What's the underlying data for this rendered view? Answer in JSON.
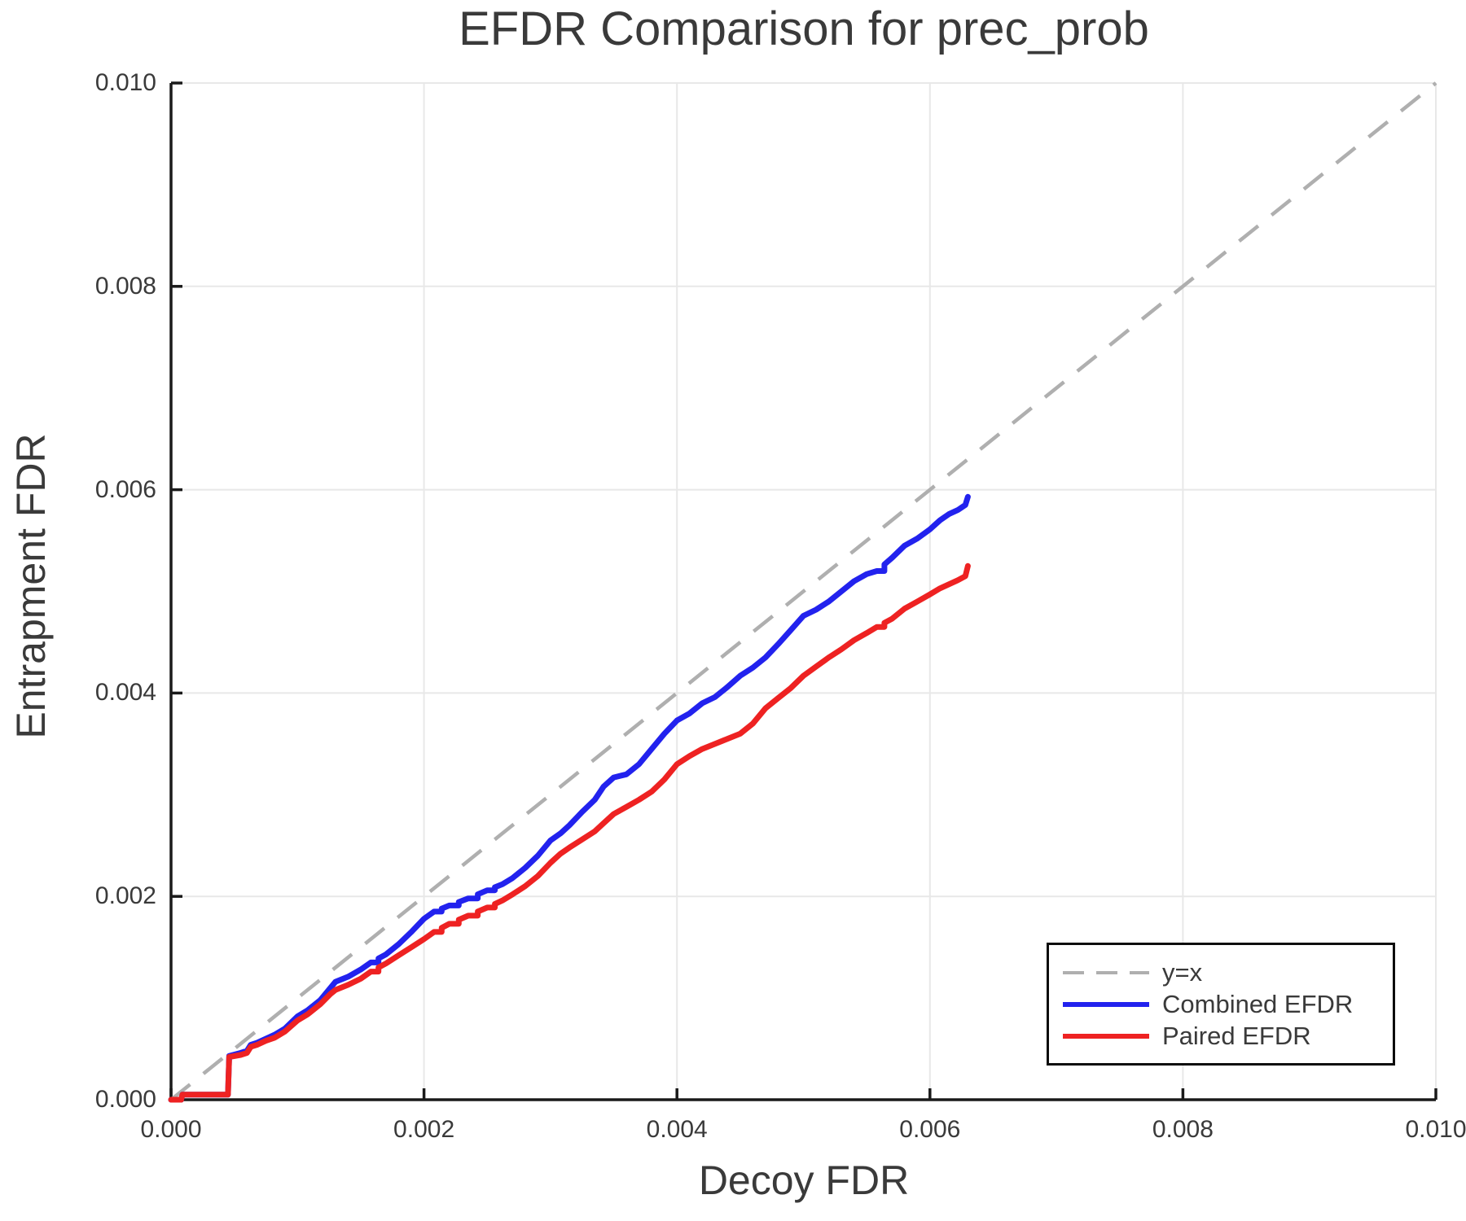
{
  "chart_data": {
    "type": "line",
    "title": "EFDR Comparison for prec_prob",
    "xlabel": "Decoy FDR",
    "ylabel": "Entrapment FDR",
    "xlim": [
      0.0,
      0.01
    ],
    "ylim": [
      0.0,
      0.01
    ],
    "x_ticks": [
      "0.000",
      "0.002",
      "0.004",
      "0.006",
      "0.008",
      "0.010"
    ],
    "y_ticks": [
      "0.000",
      "0.002",
      "0.004",
      "0.006",
      "0.008",
      "0.010"
    ],
    "grid": true,
    "legend_position": "lower right",
    "colors": {
      "identity": "#afafaf",
      "combined": "#2222ee",
      "paired": "#ee2222",
      "gridline": "#e8e8e8",
      "axis": "#1a1a1a",
      "text": "#3a3a3a"
    },
    "legend": {
      "items": [
        {
          "label": "y=x",
          "color": "#afafaf",
          "dashed": true
        },
        {
          "label": "Combined EFDR",
          "color": "#2222ee",
          "dashed": false
        },
        {
          "label": "Paired EFDR",
          "color": "#ee2222",
          "dashed": false
        }
      ]
    },
    "identity_line": {
      "label": "y=x",
      "from": [
        0.0,
        0.0
      ],
      "to": [
        0.01,
        0.01
      ]
    },
    "series": [
      {
        "name": "Combined EFDR",
        "color": "#2222ee",
        "points": [
          [
            0.0,
            0.0
          ],
          [
            8e-05,
            0.0
          ],
          [
            9e-05,
            5e-05
          ],
          [
            0.00045,
            5e-05
          ],
          [
            0.00046,
            0.00043
          ],
          [
            0.00055,
            0.00046
          ],
          [
            0.0006,
            0.00048
          ],
          [
            0.00063,
            0.00054
          ],
          [
            0.00068,
            0.00056
          ],
          [
            0.00075,
            0.0006
          ],
          [
            0.00082,
            0.00064
          ],
          [
            0.0009,
            0.0007
          ],
          [
            0.001,
            0.00082
          ],
          [
            0.00108,
            0.00088
          ],
          [
            0.00118,
            0.00098
          ],
          [
            0.00126,
            0.0011
          ],
          [
            0.0013,
            0.00116
          ],
          [
            0.0014,
            0.00121
          ],
          [
            0.0015,
            0.00128
          ],
          [
            0.00158,
            0.00135
          ],
          [
            0.0017,
            0.00143
          ],
          [
            0.0018,
            0.00153
          ],
          [
            0.0019,
            0.00165
          ],
          [
            0.002,
            0.00178
          ],
          [
            0.00208,
            0.00185
          ],
          [
            0.0022,
            0.00191
          ],
          [
            0.00235,
            0.00198
          ],
          [
            0.0025,
            0.00206
          ],
          [
            0.00262,
            0.00212
          ],
          [
            0.0027,
            0.00218
          ],
          [
            0.0028,
            0.00228
          ],
          [
            0.0029,
            0.0024
          ],
          [
            0.003,
            0.00255
          ],
          [
            0.00308,
            0.00262
          ],
          [
            0.00315,
            0.0027
          ],
          [
            0.00325,
            0.00283
          ],
          [
            0.00335,
            0.00295
          ],
          [
            0.00342,
            0.00308
          ],
          [
            0.0035,
            0.00317
          ],
          [
            0.0036,
            0.0032
          ],
          [
            0.0037,
            0.0033
          ],
          [
            0.0038,
            0.00345
          ],
          [
            0.0039,
            0.0036
          ],
          [
            0.004,
            0.00373
          ],
          [
            0.0041,
            0.0038
          ],
          [
            0.0042,
            0.0039
          ],
          [
            0.0043,
            0.00396
          ],
          [
            0.0044,
            0.00406
          ],
          [
            0.0045,
            0.00417
          ],
          [
            0.0046,
            0.00425
          ],
          [
            0.0047,
            0.00435
          ],
          [
            0.0048,
            0.00448
          ],
          [
            0.0049,
            0.00462
          ],
          [
            0.005,
            0.00476
          ],
          [
            0.0051,
            0.00482
          ],
          [
            0.0052,
            0.0049
          ],
          [
            0.0053,
            0.005
          ],
          [
            0.0054,
            0.0051
          ],
          [
            0.0055,
            0.00517
          ],
          [
            0.00558,
            0.0052
          ],
          [
            0.0057,
            0.00533
          ],
          [
            0.0058,
            0.00545
          ],
          [
            0.0059,
            0.00552
          ],
          [
            0.006,
            0.00561
          ],
          [
            0.00608,
            0.0057
          ],
          [
            0.00615,
            0.00576
          ],
          [
            0.00622,
            0.0058
          ],
          [
            0.00628,
            0.00585
          ],
          [
            0.0063,
            0.00593
          ]
        ]
      },
      {
        "name": "Paired EFDR",
        "color": "#ee2222",
        "points": [
          [
            0.0,
            0.0
          ],
          [
            8e-05,
            0.0
          ],
          [
            9e-05,
            5e-05
          ],
          [
            0.00045,
            5e-05
          ],
          [
            0.00046,
            0.00042
          ],
          [
            0.00055,
            0.00044
          ],
          [
            0.0006,
            0.00046
          ],
          [
            0.00063,
            0.00052
          ],
          [
            0.00068,
            0.00054
          ],
          [
            0.00075,
            0.00058
          ],
          [
            0.00082,
            0.00061
          ],
          [
            0.0009,
            0.00067
          ],
          [
            0.001,
            0.00078
          ],
          [
            0.00108,
            0.00084
          ],
          [
            0.00118,
            0.00094
          ],
          [
            0.00126,
            0.00104
          ],
          [
            0.0013,
            0.00108
          ],
          [
            0.0014,
            0.00113
          ],
          [
            0.0015,
            0.00119
          ],
          [
            0.00158,
            0.00126
          ],
          [
            0.0017,
            0.00134
          ],
          [
            0.0018,
            0.00142
          ],
          [
            0.0019,
            0.0015
          ],
          [
            0.002,
            0.00158
          ],
          [
            0.00208,
            0.00165
          ],
          [
            0.0022,
            0.00173
          ],
          [
            0.00235,
            0.00181
          ],
          [
            0.0025,
            0.00189
          ],
          [
            0.00262,
            0.00196
          ],
          [
            0.0027,
            0.00202
          ],
          [
            0.0028,
            0.0021
          ],
          [
            0.0029,
            0.0022
          ],
          [
            0.003,
            0.00233
          ],
          [
            0.00308,
            0.00242
          ],
          [
            0.00315,
            0.00248
          ],
          [
            0.00325,
            0.00256
          ],
          [
            0.00335,
            0.00264
          ],
          [
            0.00342,
            0.00272
          ],
          [
            0.0035,
            0.00281
          ],
          [
            0.0036,
            0.00288
          ],
          [
            0.0037,
            0.00295
          ],
          [
            0.0038,
            0.00303
          ],
          [
            0.0039,
            0.00315
          ],
          [
            0.004,
            0.0033
          ],
          [
            0.0041,
            0.00338
          ],
          [
            0.0042,
            0.00345
          ],
          [
            0.0043,
            0.0035
          ],
          [
            0.0044,
            0.00355
          ],
          [
            0.0045,
            0.0036
          ],
          [
            0.0046,
            0.0037
          ],
          [
            0.0047,
            0.00385
          ],
          [
            0.0048,
            0.00395
          ],
          [
            0.0049,
            0.00405
          ],
          [
            0.005,
            0.00417
          ],
          [
            0.0051,
            0.00426
          ],
          [
            0.0052,
            0.00435
          ],
          [
            0.0053,
            0.00443
          ],
          [
            0.0054,
            0.00452
          ],
          [
            0.0055,
            0.00459
          ],
          [
            0.00558,
            0.00465
          ],
          [
            0.0057,
            0.00473
          ],
          [
            0.0058,
            0.00483
          ],
          [
            0.0059,
            0.0049
          ],
          [
            0.006,
            0.00497
          ],
          [
            0.00608,
            0.00503
          ],
          [
            0.00615,
            0.00507
          ],
          [
            0.00622,
            0.00511
          ],
          [
            0.00628,
            0.00515
          ],
          [
            0.0063,
            0.00525
          ]
        ]
      }
    ]
  }
}
